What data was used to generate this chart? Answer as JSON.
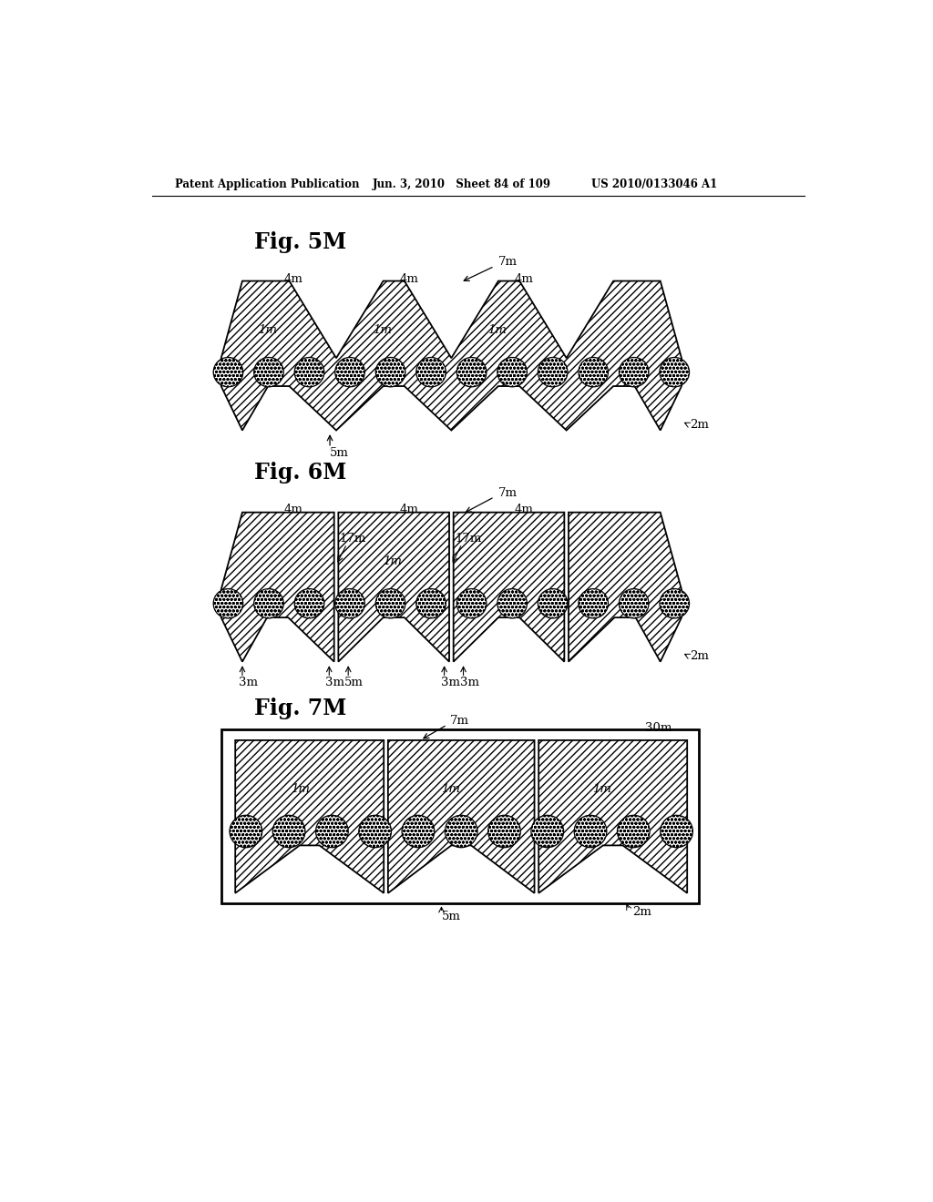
{
  "header_left": "Patent Application Publication",
  "header_mid": "Jun. 3, 2010   Sheet 84 of 109",
  "header_right": "US 2010/0133046 A1",
  "fig5m_title": "Fig. 5M",
  "fig6m_title": "Fig. 6M",
  "fig7m_title": "Fig. 7M",
  "bg_color": "#ffffff"
}
